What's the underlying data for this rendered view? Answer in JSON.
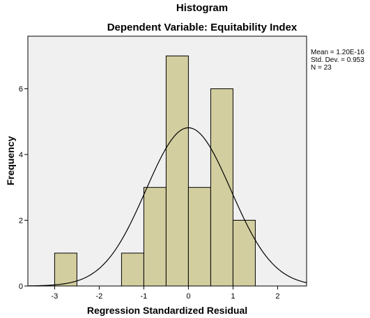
{
  "chart_data": {
    "type": "bar",
    "chart_kind": "histogram",
    "title": "Histogram",
    "subtitle": "Dependent Variable: Equitability Index",
    "xlabel": "Regression Standardized Residual",
    "ylabel": "Frequency",
    "bins": [
      {
        "x0": -3.0,
        "x1": -2.5,
        "count": 1
      },
      {
        "x0": -1.5,
        "x1": -1.0,
        "count": 1
      },
      {
        "x0": -1.0,
        "x1": -0.5,
        "count": 3
      },
      {
        "x0": -0.5,
        "x1": 0.0,
        "count": 7
      },
      {
        "x0": 0.0,
        "x1": 0.5,
        "count": 3
      },
      {
        "x0": 0.5,
        "x1": 1.0,
        "count": 6
      },
      {
        "x0": 1.0,
        "x1": 1.5,
        "count": 2
      }
    ],
    "x_ticks": [
      "-3",
      "-2",
      "-1",
      "0",
      "1",
      "2"
    ],
    "y_ticks": [
      "0",
      "2",
      "4",
      "6"
    ],
    "xlim": [
      -3.6,
      2.65
    ],
    "ylim": [
      0,
      7.6
    ],
    "normal_curve": {
      "mean": 0.0,
      "std": 0.953,
      "n": 23,
      "bin_width": 0.5
    },
    "stats": {
      "mean": "Mean = 1.20E-16",
      "std_dev": "Std. Dev. = 0.953",
      "n": "N = 23"
    },
    "colors": {
      "bar_fill": "#D3CE9F",
      "bar_stroke": "#000000",
      "plot_background": "#F0F0F0",
      "curve": "#000000"
    },
    "grid": false,
    "legend_placement": "top-right"
  }
}
